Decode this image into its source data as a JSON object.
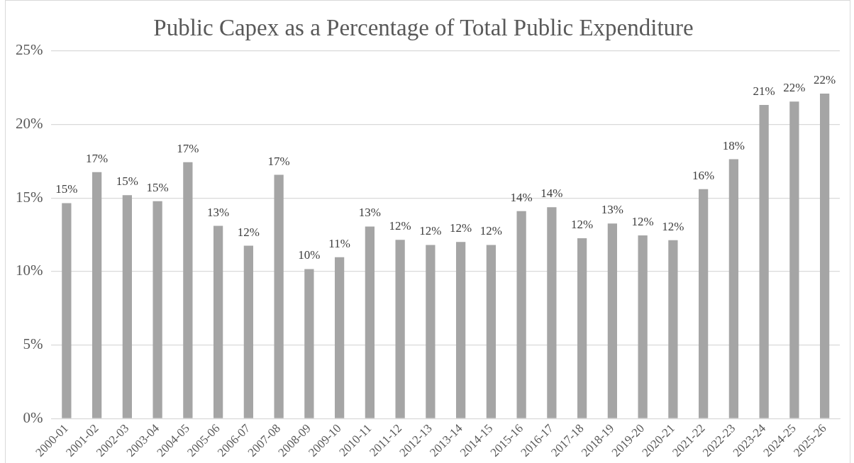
{
  "chart_data": {
    "type": "bar",
    "title": "Public Capex as a Percentage of Total Public Expenditure",
    "categories": [
      "2000-01",
      "2001-02",
      "2002-03",
      "2003-04",
      "2004-05",
      "2005-06",
      "2006-07",
      "2007-08",
      "2008-09",
      "2009-10",
      "2010-11",
      "2011-12",
      "2012-13",
      "2013-14",
      "2014-15",
      "2015-16",
      "2016-17",
      "2017-18",
      "2018-19",
      "2019-20",
      "2020-21",
      "2021-22",
      "2022-23",
      "2023-24",
      "2024-25",
      "2025-26"
    ],
    "values": [
      14.65,
      16.75,
      15.19,
      14.78,
      17.43,
      13.1,
      11.75,
      16.57,
      10.17,
      10.97,
      13.06,
      12.15,
      11.81,
      12.01,
      11.81,
      14.1,
      14.37,
      12.26,
      13.26,
      12.46,
      12.13,
      15.6,
      17.63,
      21.32,
      21.55,
      22.09
    ],
    "value_labels": [
      "15%",
      "17%",
      "15%",
      "15%",
      "17%",
      "13%",
      "12%",
      "17%",
      "10%",
      "11%",
      "13%",
      "12%",
      "12%",
      "12%",
      "12%",
      "14%",
      "14%",
      "12%",
      "13%",
      "12%",
      "12%",
      "16%",
      "18%",
      "21%",
      "22%",
      "22%"
    ],
    "color": "#a5a5a5",
    "ylim": [
      0,
      25
    ],
    "yticks": [
      {
        "value": 0,
        "label": "0%"
      },
      {
        "value": 5,
        "label": "5%"
      },
      {
        "value": 10,
        "label": "10%"
      },
      {
        "value": 15,
        "label": "15%"
      },
      {
        "value": 20,
        "label": "20%"
      },
      {
        "value": 25,
        "label": "25%"
      }
    ],
    "grid": "y"
  }
}
